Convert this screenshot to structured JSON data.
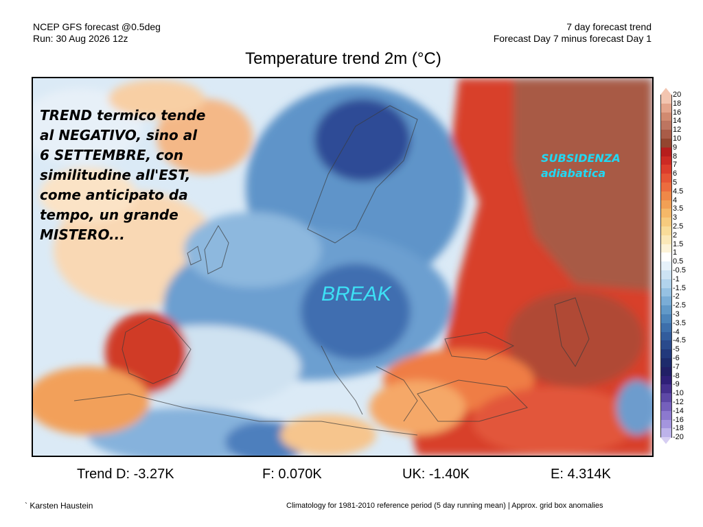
{
  "header": {
    "left_line1": "NCEP GFS forecast @0.5deg",
    "left_line2": "Run: 30 Aug 2026 12z",
    "right_line1": "7 day forecast trend",
    "right_line2": "Forecast Day 7 minus forecast Day 1"
  },
  "title": "Temperature trend 2m (°C)",
  "annotations": {
    "left": "TREND termico tende\nal NEGATIVO, sino al\n6 SETTEMBRE, con\nsimilitudine all'EST,\ncome anticipato da\ntempo, un grande\nMISTERO...",
    "right": "SUBSIDENZA\nadiabatica",
    "center": "BREAK"
  },
  "colorbar": {
    "labels": [
      "20",
      "18",
      "16",
      "14",
      "12",
      "10",
      "9",
      "8",
      "7",
      "6",
      "5",
      "4.5",
      "4",
      "3.5",
      "3",
      "2.5",
      "2",
      "1.5",
      "1",
      "0.5",
      "-0.5",
      "-1",
      "-1.5",
      "-2",
      "-2.5",
      "-3",
      "-3.5",
      "-4",
      "-4.5",
      "-5",
      "-6",
      "-7",
      "-8",
      "-9",
      "-10",
      "-12",
      "-14",
      "-16",
      "-18",
      "-20"
    ],
    "colors": [
      "#f3c5b0",
      "#e4a58c",
      "#d18a70",
      "#bd7560",
      "#a95c48",
      "#93452f",
      "#b61d1d",
      "#cc2a24",
      "#dc3d2c",
      "#e65535",
      "#ec6c3e",
      "#f08848",
      "#f2a055",
      "#f5b868",
      "#f7cb7e",
      "#f9dc99",
      "#fbe8b8",
      "#fdf3d8",
      "#ffffff",
      "#e6f1fa",
      "#cde3f4",
      "#b2d3ec",
      "#96c1e2",
      "#7aadd6",
      "#6199c8",
      "#4c84ba",
      "#3d6fab",
      "#325c9c",
      "#2a4a8c",
      "#22397c",
      "#1d2b6c",
      "#211f66",
      "#2f1f78",
      "#45308e",
      "#5d48a6",
      "#7560bc",
      "#8c79cf",
      "#a495de",
      "#bdb3ea"
    ],
    "top_color": "#f3c5b0",
    "bottom_color": "#d6cef2"
  },
  "stats": {
    "d": "Trend D: -3.27K",
    "f": "F: 0.070K",
    "uk": "UK: -1.40K",
    "e": "E: 4.314K"
  },
  "footer": {
    "author": "` Karsten Haustein",
    "climatology": "Climatology for 1981-2010 reference period (5 day running mean) | Approx. grid box anomalies"
  }
}
